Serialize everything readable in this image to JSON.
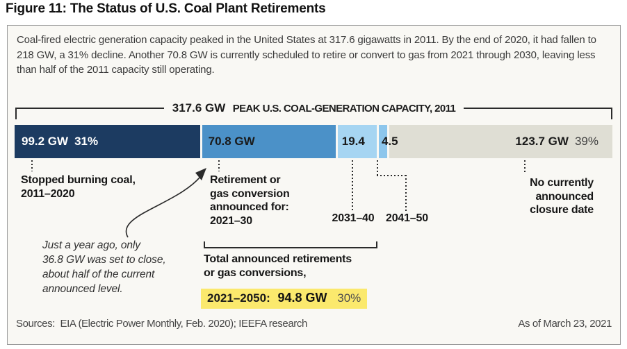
{
  "title": "Figure 11: The Status of U.S. Coal Plant Retirements",
  "intro": "Coal-fired electric generation capacity peaked in the United States at 317.6 gigawatts in 2011. By the end of 2020, it had fallen to 218 GW, a 31% decline. Another 70.8 GW is currently scheduled to retire or convert to gas from 2021 through 2030, leaving less than half of the 2011 capacity still operating.",
  "chart_data": {
    "type": "bar",
    "variant": "horizontal-stacked",
    "unit": "GW",
    "total_gw": 317.6,
    "peak_label": {
      "value": "317.6 GW",
      "text": "PEAK U.S. COAL-GENERATION CAPACITY, 2011"
    },
    "segments": [
      {
        "category": "Stopped burning coal, 2011–2020",
        "value_gw": 99.2,
        "bar_label": "99.2 GW",
        "pct_of_total": "31%",
        "color": "#1c3b61"
      },
      {
        "category": "Retirement or gas conversion announced for 2021–30",
        "value_gw": 70.8,
        "bar_label": "70.8 GW",
        "color": "#4b91c8"
      },
      {
        "category": "Retirement or gas conversion announced for 2031–40",
        "value_gw": 19.4,
        "bar_label": "19.4",
        "color": "#a6d5f2"
      },
      {
        "category": "Retirement or gas conversion announced for 2041–50",
        "value_gw": 4.5,
        "bar_label": "4.5",
        "color": "#8dc6ec"
      },
      {
        "category": "No currently announced closure date",
        "value_gw": 123.7,
        "bar_label": "123.7 GW",
        "pct_of_total": "39%",
        "color": "#dfded4"
      }
    ]
  },
  "annotations": {
    "stopped": "Stopped burning coal,\n2011–2020",
    "retirement": "Retirement or\ngas conversion\nannounced for:\n2021–30",
    "decade_2031_40": "2031–40",
    "decade_2041_50": "2041–50",
    "no_closure": "No currently\nannounced\nclosure date"
  },
  "note": "Just a year ago, only\n36.8 GW was set to close,\nabout half of the current\nannounced level.",
  "total_callout": {
    "heading": "Total announced retirements\nor gas conversions,",
    "range": "2021–2050:",
    "value": "94.8 GW",
    "pct": "30%",
    "highlight_color": "#fbe96d"
  },
  "footer": {
    "sources": "Sources:  EIA (Electric Power Monthly, Feb. 2020); IEEFA research",
    "as_of": "As of March 23, 2021"
  }
}
